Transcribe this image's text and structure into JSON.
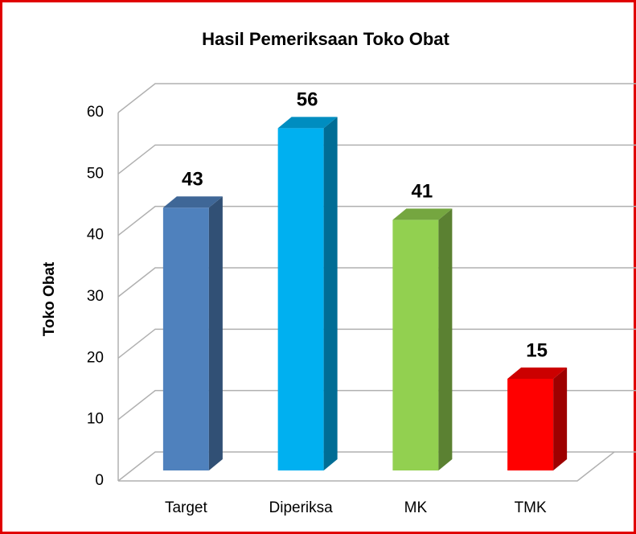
{
  "chart_data": {
    "type": "bar3d",
    "title": "Hasil Pemeriksaan Toko Obat",
    "y_label": "Toko Obat",
    "categories": [
      "Target",
      "Diperiksa",
      "MK",
      "TMK"
    ],
    "values": [
      43,
      56,
      41,
      15
    ],
    "colors": [
      "#4f81bd",
      "#00b0f0",
      "#92d050",
      "#ff0000"
    ],
    "ylim": [
      0,
      60
    ],
    "yticks": [
      0,
      10,
      20,
      30,
      40,
      50,
      60
    ],
    "grid": true
  }
}
